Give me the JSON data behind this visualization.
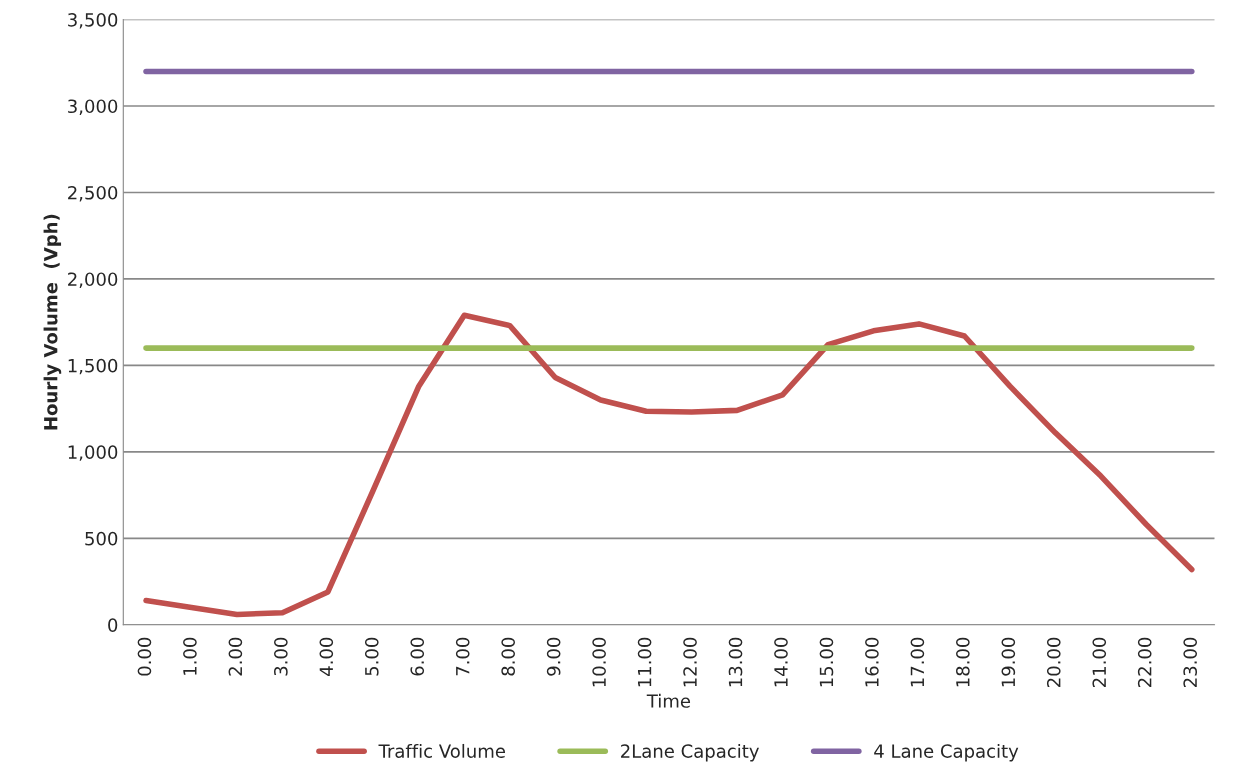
{
  "chart_data": {
    "type": "line",
    "xlabel": "Time",
    "ylabel": "Hourly Volume  (Vph)",
    "categories": [
      "0.00",
      "1.00",
      "2.00",
      "3.00",
      "4.00",
      "5.00",
      "6.00",
      "7.00",
      "8.00",
      "9.00",
      "10.00",
      "11.00",
      "12.00",
      "13.00",
      "14.00",
      "15.00",
      "16.00",
      "17.00",
      "18.00",
      "19.00",
      "20.00",
      "21.00",
      "22.00",
      "23.00"
    ],
    "series": [
      {
        "name": "Traffic Volume",
        "color": "#c0504d",
        "values": [
          140,
          100,
          60,
          70,
          190,
          780,
          1380,
          1790,
          1730,
          1430,
          1300,
          1235,
          1230,
          1240,
          1330,
          1620,
          1700,
          1740,
          1670,
          1380,
          1110,
          860,
          580,
          320
        ]
      },
      {
        "name": "2Lane Capacity",
        "color": "#9bbb59",
        "values": [
          1600,
          1600,
          1600,
          1600,
          1600,
          1600,
          1600,
          1600,
          1600,
          1600,
          1600,
          1600,
          1600,
          1600,
          1600,
          1600,
          1600,
          1600,
          1600,
          1600,
          1600,
          1600,
          1600,
          1600
        ]
      },
      {
        "name": "4 Lane Capacity",
        "color": "#8064a2",
        "values": [
          3200,
          3200,
          3200,
          3200,
          3200,
          3200,
          3200,
          3200,
          3200,
          3200,
          3200,
          3200,
          3200,
          3200,
          3200,
          3200,
          3200,
          3200,
          3200,
          3200,
          3200,
          3200,
          3200,
          3200
        ]
      }
    ],
    "ylim": [
      0,
      3500
    ],
    "yticks": [
      {
        "value": 0,
        "label": "0"
      },
      {
        "value": 500,
        "label": "500"
      },
      {
        "value": 1000,
        "label": "1,000"
      },
      {
        "value": 1500,
        "label": "1,500"
      },
      {
        "value": 2000,
        "label": "2,000"
      },
      {
        "value": 2500,
        "label": "2,500"
      },
      {
        "value": 3000,
        "label": "3,000"
      },
      {
        "value": 3500,
        "label": "3,500"
      }
    ],
    "grid": "y",
    "legend": "bottom",
    "marker": "none",
    "line_style": "solid"
  }
}
